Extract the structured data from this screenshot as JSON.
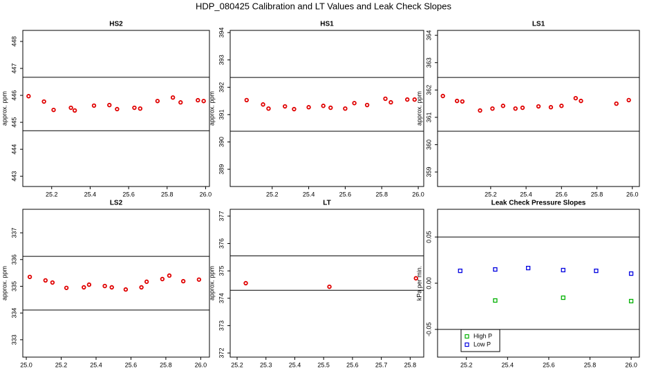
{
  "title": "HDP_080425  Calibration and LT Values and Leak Check Slopes",
  "chart_data": [
    {
      "type": "scatter",
      "title": "HS2",
      "ylabel": "approx. ppm",
      "color": "#e00000",
      "x": [
        25.08,
        25.16,
        25.21,
        25.3,
        25.32,
        25.42,
        25.5,
        25.54,
        25.63,
        25.66,
        25.75,
        25.83,
        25.87,
        25.96,
        25.99
      ],
      "values": [
        445.97,
        445.77,
        445.46,
        445.54,
        445.44,
        445.62,
        445.64,
        445.49,
        445.54,
        445.51,
        445.79,
        445.92,
        445.74,
        445.82,
        445.79
      ],
      "hlines": [
        446.67,
        444.69
      ],
      "xlim": [
        25.05,
        26.02
      ],
      "xticks": [
        25.2,
        25.4,
        25.6,
        25.8,
        {
          "value": 26,
          "label": "26.0"
        }
      ],
      "ylim": [
        442.62,
        448.41
      ],
      "yticks": [
        443,
        444,
        445,
        446,
        447,
        448
      ]
    },
    {
      "type": "scatter",
      "title": "HS1",
      "ylabel": "approx. ppm",
      "color": "#e00000",
      "x": [
        25.06,
        25.15,
        25.18,
        25.27,
        25.32,
        25.4,
        25.48,
        25.52,
        25.6,
        25.65,
        25.72,
        25.82,
        25.85,
        25.94,
        25.98
      ],
      "values": [
        391.53,
        391.37,
        391.22,
        391.3,
        391.2,
        391.27,
        391.32,
        391.25,
        391.22,
        391.42,
        391.35,
        391.58,
        391.45,
        391.55,
        391.55
      ],
      "hlines": [
        392.36,
        390.39
      ],
      "xlim": [
        24.97,
        26.03
      ],
      "xticks": [
        25.2,
        25.4,
        25.6,
        25.8,
        {
          "value": 26,
          "label": "26.0"
        }
      ],
      "ylim": [
        388.37,
        394.08
      ],
      "yticks": [
        389,
        390,
        391,
        392,
        393,
        394
      ]
    },
    {
      "type": "scatter",
      "title": "LS1",
      "ylabel": "approx. ppm",
      "color": "#e00000",
      "x": [
        24.93,
        25.01,
        25.04,
        25.14,
        25.21,
        25.27,
        25.34,
        25.38,
        25.47,
        25.54,
        25.6,
        25.68,
        25.71,
        25.91,
        25.98
      ],
      "values": [
        361.78,
        361.6,
        361.58,
        361.25,
        361.32,
        361.42,
        361.32,
        361.35,
        361.4,
        361.37,
        361.42,
        361.7,
        361.6,
        361.5,
        361.63
      ],
      "hlines": [
        362.46,
        360.49
      ],
      "xlim": [
        24.9,
        26.04
      ],
      "xticks": [
        25.2,
        25.4,
        25.6,
        25.8,
        {
          "value": 26,
          "label": "26.0"
        }
      ],
      "ylim": [
        358.47,
        364.18
      ],
      "yticks": [
        359,
        360,
        361,
        362,
        363,
        364
      ]
    },
    {
      "type": "scatter",
      "title": "LS2",
      "ylabel": "approx. ppm",
      "color": "#e00000",
      "x": [
        25.02,
        25.11,
        25.15,
        25.23,
        25.33,
        25.36,
        25.45,
        25.49,
        25.57,
        25.66,
        25.69,
        25.78,
        25.82,
        25.9,
        25.99
      ],
      "values": [
        335.35,
        335.22,
        335.14,
        334.94,
        334.96,
        335.06,
        335.01,
        334.96,
        334.88,
        334.96,
        335.17,
        335.27,
        335.4,
        335.19,
        335.25
      ],
      "hlines": [
        336.12,
        334.11
      ],
      "xlim": [
        24.98,
        26.05
      ],
      "xticks": [
        {
          "value": 25,
          "label": "25.0"
        },
        25.2,
        25.4,
        25.6,
        25.8,
        {
          "value": 26,
          "label": "26.0"
        }
      ],
      "ylim": [
        332.35,
        337.88
      ],
      "yticks": [
        333,
        334,
        335,
        336,
        337
      ]
    },
    {
      "type": "scatter",
      "title": "LT",
      "ylabel": "approx. ppm",
      "color": "#e00000",
      "x": [
        25.23,
        25.52,
        25.82
      ],
      "values": [
        374.55,
        374.42,
        374.73
      ],
      "hlines": [
        375.55,
        374.29
      ],
      "xlim": [
        25.176,
        25.847
      ],
      "xticks": [
        25.2,
        25.3,
        25.4,
        25.5,
        25.6,
        25.7,
        25.8
      ],
      "ylim": [
        371.85,
        377.25
      ],
      "yticks": [
        372,
        373,
        374,
        375,
        376,
        377
      ]
    },
    {
      "type": "scatter",
      "title": "Leak Check Pressure Slopes",
      "ylabel": "kPa per min.",
      "legend": "bottom-left",
      "series": [
        {
          "name": "High P",
          "color": "#00b000",
          "x": [
            25.34,
            25.67,
            26.0
          ],
          "values": [
            -0.0187,
            -0.0157,
            -0.0194
          ]
        },
        {
          "name": "Low P",
          "color": "#0000e0",
          "x": [
            25.17,
            25.34,
            25.5,
            25.67,
            25.83,
            26.0
          ],
          "values": [
            0.0134,
            0.0149,
            0.0164,
            0.0142,
            0.0134,
            0.0104
          ]
        }
      ],
      "hlines": [
        0.05,
        -0.05
      ],
      "xlim": [
        25.06,
        26.04
      ],
      "xticks": [
        25.2,
        25.4,
        25.6,
        25.8,
        {
          "value": 26,
          "label": "26.0"
        }
      ],
      "ylim": [
        -0.08,
        0.08
      ],
      "yticks": [
        -0.05,
        {
          "value": 0,
          "label": "0.00"
        },
        0.05
      ]
    }
  ]
}
